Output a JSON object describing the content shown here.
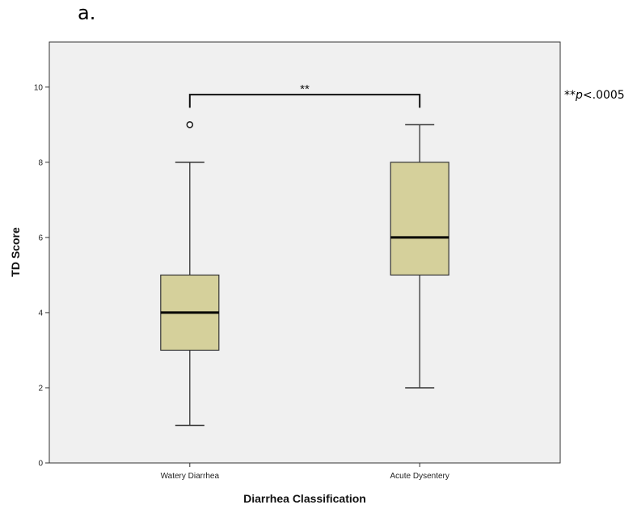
{
  "panel_label": "a.",
  "significance_note": {
    "stars": "**",
    "p_symbol": "p",
    "threshold": "<.0005"
  },
  "chart_data": {
    "type": "box",
    "title": "",
    "xlabel": "Diarrhea Classification",
    "ylabel": "TD Score",
    "ylim": [
      0,
      11.2
    ],
    "y_ticks": [
      0,
      2,
      4,
      6,
      8,
      10
    ],
    "grid": false,
    "categories": [
      "Watery Diarrhea",
      "Acute Dysentery"
    ],
    "boxes": [
      {
        "category": "Watery Diarrhea",
        "whisker_low": 1,
        "q1": 3,
        "median": 4,
        "q3": 5,
        "whisker_high": 8,
        "outliers": [
          9
        ]
      },
      {
        "category": "Acute Dysentery",
        "whisker_low": 2,
        "q1": 5,
        "median": 6,
        "q3": 8,
        "whisker_high": 9,
        "outliers": []
      }
    ],
    "significance": {
      "label": "**",
      "between": [
        "Watery Diarrhea",
        "Acute Dysentery"
      ],
      "bracket_y": 9.8,
      "bracket_drop": 0.35
    },
    "colors": {
      "plot_background": "#f0f0f0",
      "box_fill": "#d5d09b",
      "box_stroke": "#333333",
      "median": "#000000"
    }
  }
}
